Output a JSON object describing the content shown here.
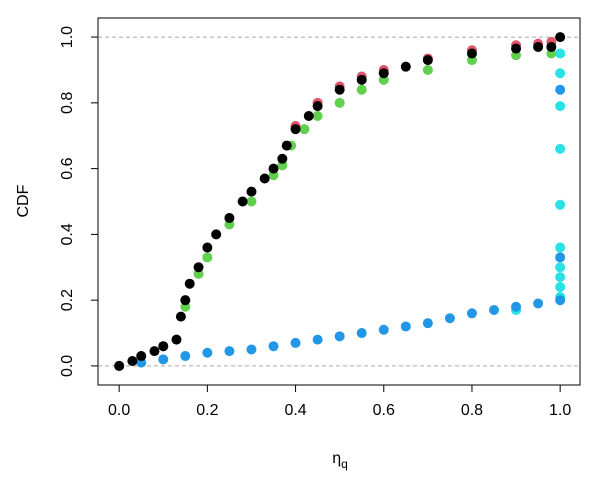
{
  "chart_data": {
    "type": "scatter",
    "x_label": "η",
    "x_label_subscript": "q",
    "y_label": "CDF",
    "xlim": [
      -0.048,
      1.045
    ],
    "ylim": [
      -0.058,
      1.058
    ],
    "xticks": [
      {
        "value": 0,
        "label": "0.0"
      },
      0.2,
      0.4,
      0.6,
      0.8,
      {
        "value": 1,
        "label": "1.0"
      }
    ],
    "yticks": [
      {
        "value": 0,
        "label": "0.0"
      },
      0.2,
      0.4,
      0.6,
      0.8,
      {
        "value": 1,
        "label": "1.0"
      }
    ],
    "reference_lines": [
      0,
      1
    ],
    "series": [
      {
        "color": "#28E2E5",
        "x": [
          0.9,
          1,
          1,
          1,
          1,
          1,
          1,
          1,
          1,
          1,
          1
        ],
        "y": [
          0.17,
          0.21,
          0.24,
          0.27,
          0.3,
          0.36,
          0.49,
          0.66,
          0.79,
          0.89,
          0.95
        ]
      },
      {
        "color": "#2297E6",
        "x": [
          0,
          0.05,
          0.1,
          0.15,
          0.2,
          0.25,
          0.3,
          0.35,
          0.4,
          0.45,
          0.5,
          0.55,
          0.6,
          0.65,
          0.7,
          0.75,
          0.8,
          0.85,
          0.9,
          0.95,
          1,
          1,
          1
        ],
        "y": [
          0,
          0.01,
          0.02,
          0.03,
          0.04,
          0.045,
          0.05,
          0.06,
          0.07,
          0.08,
          0.09,
          0.1,
          0.11,
          0.12,
          0.13,
          0.145,
          0.16,
          0.17,
          0.18,
          0.19,
          0.2,
          0.33,
          0.84
        ]
      },
      {
        "color": "#61D04F",
        "x": [
          0,
          0.05,
          0.1,
          0.13,
          0.15,
          0.18,
          0.2,
          0.25,
          0.3,
          0.35,
          0.37,
          0.39,
          0.42,
          0.45,
          0.5,
          0.55,
          0.6,
          0.7,
          0.8,
          0.9,
          0.98
        ],
        "y": [
          0,
          0.03,
          0.06,
          0.08,
          0.18,
          0.28,
          0.33,
          0.43,
          0.5,
          0.58,
          0.61,
          0.67,
          0.72,
          0.76,
          0.8,
          0.84,
          0.87,
          0.9,
          0.93,
          0.945,
          0.95
        ]
      },
      {
        "color": "#DF536B",
        "x": [
          0.4,
          0.45,
          0.5,
          0.55,
          0.6,
          0.7,
          0.8,
          0.9,
          0.95,
          0.98
        ],
        "y": [
          0.73,
          0.8,
          0.85,
          0.88,
          0.9,
          0.935,
          0.96,
          0.975,
          0.98,
          0.985
        ]
      },
      {
        "color": "#000000",
        "x": [
          0,
          0.03,
          0.05,
          0.08,
          0.1,
          0.13,
          0.14,
          0.15,
          0.16,
          0.18,
          0.2,
          0.22,
          0.25,
          0.28,
          0.3,
          0.33,
          0.35,
          0.37,
          0.38,
          0.4,
          0.43,
          0.45,
          0.5,
          0.55,
          0.6,
          0.65,
          0.7,
          0.8,
          0.9,
          0.95,
          0.98,
          1
        ],
        "y": [
          0,
          0.015,
          0.03,
          0.045,
          0.06,
          0.08,
          0.15,
          0.2,
          0.25,
          0.3,
          0.36,
          0.4,
          0.45,
          0.5,
          0.53,
          0.57,
          0.6,
          0.63,
          0.67,
          0.72,
          0.76,
          0.79,
          0.84,
          0.87,
          0.89,
          0.91,
          0.93,
          0.95,
          0.965,
          0.97,
          0.97,
          1
        ]
      }
    ]
  }
}
